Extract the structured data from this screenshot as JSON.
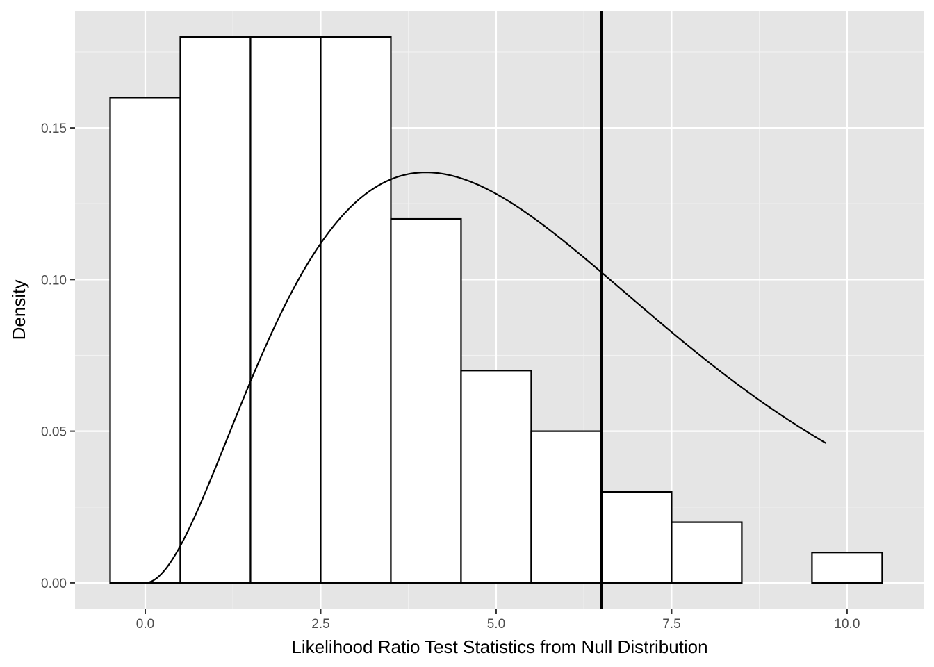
{
  "chart_data": {
    "type": "histogram",
    "title": "",
    "xlabel": "Likelihood Ratio Test Statistics from Null Distribution",
    "ylabel": "Density",
    "xlim": [
      -1.0,
      11.1
    ],
    "ylim": [
      -0.0085,
      0.1885
    ],
    "x_ticks": [
      0.0,
      2.5,
      5.0,
      7.5,
      10.0
    ],
    "x_tick_labels": [
      "0.0",
      "2.5",
      "5.0",
      "7.5",
      "10.0"
    ],
    "y_ticks": [
      0.0,
      0.05,
      0.1,
      0.15
    ],
    "y_tick_labels": [
      "0.00",
      "0.05",
      "0.10",
      "0.15"
    ],
    "bins": [
      {
        "x0": -0.5,
        "x1": 0.5,
        "density": 0.16
      },
      {
        "x0": 0.5,
        "x1": 1.5,
        "density": 0.18
      },
      {
        "x0": 1.5,
        "x1": 2.5,
        "density": 0.18
      },
      {
        "x0": 2.5,
        "x1": 3.5,
        "density": 0.18
      },
      {
        "x0": 3.5,
        "x1": 4.5,
        "density": 0.12
      },
      {
        "x0": 4.5,
        "x1": 5.5,
        "density": 0.07
      },
      {
        "x0": 5.5,
        "x1": 6.5,
        "density": 0.05
      },
      {
        "x0": 6.5,
        "x1": 7.5,
        "density": 0.03
      },
      {
        "x0": 7.5,
        "x1": 8.5,
        "density": 0.02
      },
      {
        "x0": 8.5,
        "x1": 9.5,
        "density": 0.0
      },
      {
        "x0": 9.5,
        "x1": 10.5,
        "density": 0.01
      }
    ],
    "density_curve": {
      "description": "chi-square density, df = 6",
      "df": 6,
      "x_range": [
        0.0,
        9.7
      ]
    },
    "vline": {
      "x": 6.5
    },
    "grid": true,
    "legend": "none",
    "colors": {
      "panel_background": "#e5e5e5",
      "grid_major": "#ffffff",
      "grid_minor": "#f2f2f2",
      "bar_fill": "#ffffff",
      "bar_outline": "#000000",
      "curve": "#000000"
    }
  }
}
